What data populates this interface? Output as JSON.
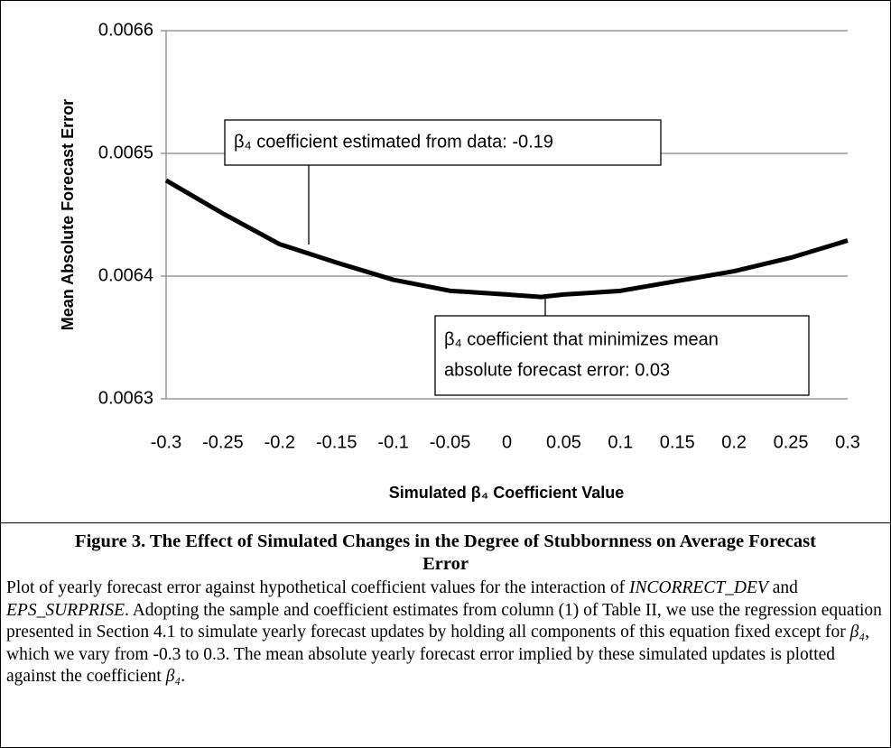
{
  "chart_data": {
    "type": "line",
    "x_label": "Simulated β₄ Coefficient Value",
    "y_label": "Mean Absolute Forecast Error",
    "x": [
      -0.3,
      -0.25,
      -0.2,
      -0.15,
      -0.1,
      -0.05,
      0,
      0.03,
      0.05,
      0.1,
      0.15,
      0.2,
      0.25,
      0.3
    ],
    "series": [
      {
        "color": "#000000",
        "values": [
          0.006478,
          0.006451,
          0.006426,
          0.006411,
          0.006397,
          0.006388,
          0.006385,
          0.006383,
          0.006385,
          0.006388,
          0.006396,
          0.006404,
          0.006415,
          0.006429
        ]
      }
    ],
    "xlim": [
      -0.3,
      0.3
    ],
    "xticks": [
      -0.3,
      -0.25,
      -0.2,
      -0.15,
      -0.1,
      -0.05,
      0,
      0.05,
      0.1,
      0.15,
      0.2,
      0.25,
      0.3
    ],
    "ylim": [
      0.0063,
      0.0066
    ],
    "yticks": [
      0.0063,
      0.0064,
      0.0065,
      0.0066
    ],
    "grid": true,
    "annotations": [
      {
        "lines": [
          "β₄ coefficient estimated from data: -0.19"
        ]
      },
      {
        "lines": [
          "β₄ coefficient that minimizes mean",
          "absolute forecast error: 0.03"
        ]
      }
    ]
  },
  "caption": {
    "title": "Figure 3.  The Effect of Simulated Changes in the Degree of Stubbornness on Average Forecast Error",
    "body": [
      {
        "text": "Plot of yearly forecast error against hypothetical coefficient values for the interaction of "
      },
      {
        "text": "INCORRECT_DEV",
        "italic": true
      },
      {
        "text": " and "
      },
      {
        "text": "EPS_SURPRISE",
        "italic": true
      },
      {
        "text": ".  Adopting the sample and coefficient estimates from column (1) of Table II, we use the regression equation presented in Section 4.1 to simulate yearly forecast updates by holding all components of this equation fixed except for "
      },
      {
        "text": "β₄",
        "italic": true
      },
      {
        "text": ", which we vary from -0.3 to 0.3.  The mean absolute yearly forecast error implied by these simulated updates is plotted against the coefficient "
      },
      {
        "text": "β₄",
        "italic": true
      },
      {
        "text": "."
      }
    ]
  }
}
